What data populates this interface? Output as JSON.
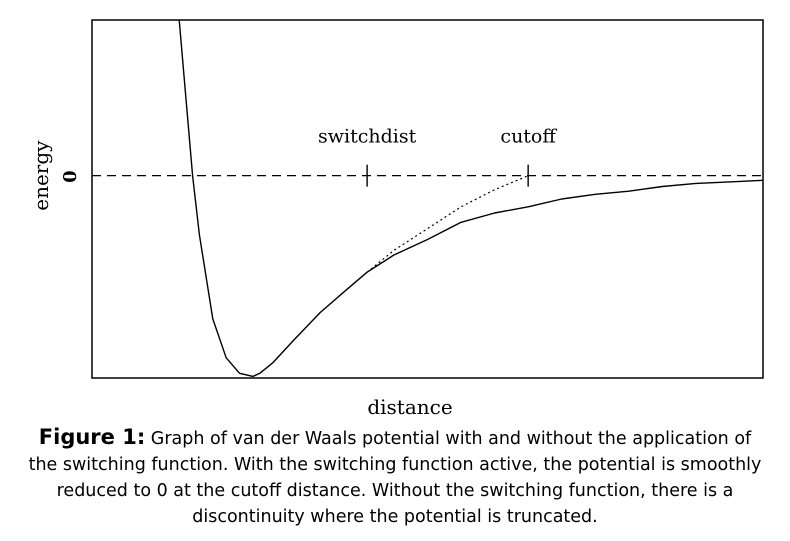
{
  "chart_data": {
    "type": "line",
    "title": "",
    "xlabel": "distance",
    "ylabel": "energy",
    "y_ticks": [
      {
        "value": 0,
        "label": "0"
      }
    ],
    "xlim": [
      0.0,
      1.0
    ],
    "ylim": [
      -1.3,
      1.0
    ],
    "grid": false,
    "zero_line": {
      "y": 0,
      "style": "dashed"
    },
    "markers": [
      {
        "label": "switchdist",
        "x": 0.41
      },
      {
        "label": "cutoff",
        "x": 0.65
      }
    ],
    "series": [
      {
        "style": "solid",
        "x": [
          0.13,
          0.14,
          0.15,
          0.16,
          0.18,
          0.2,
          0.22,
          0.24,
          0.25,
          0.27,
          0.3,
          0.34,
          0.38,
          0.41,
          0.45,
          0.5,
          0.55,
          0.6,
          0.65,
          0.7,
          0.75,
          0.8,
          0.85,
          0.9,
          0.95,
          1.0
        ],
        "y": [
          1.0,
          0.5,
          0.0,
          -0.38,
          -0.92,
          -1.17,
          -1.27,
          -1.29,
          -1.27,
          -1.2,
          -1.06,
          -0.88,
          -0.73,
          -0.62,
          -0.51,
          -0.41,
          -0.3,
          -0.24,
          -0.2,
          -0.15,
          -0.12,
          -0.1,
          -0.07,
          -0.05,
          -0.04,
          -0.03
        ]
      },
      {
        "style": "dotted",
        "x": [
          0.41,
          0.45,
          0.5,
          0.55,
          0.6,
          0.65
        ],
        "y": [
          -0.62,
          -0.48,
          -0.34,
          -0.2,
          -0.09,
          0.0
        ]
      }
    ]
  },
  "caption": {
    "label": "Figure 1:",
    "text": " Graph of van der Waals potential with and without the application of the switching function. With the switching function active, the potential is smoothly reduced to 0 at the cutoff distance. Without the switching function, there is a discontinuity where the potential is truncated."
  }
}
